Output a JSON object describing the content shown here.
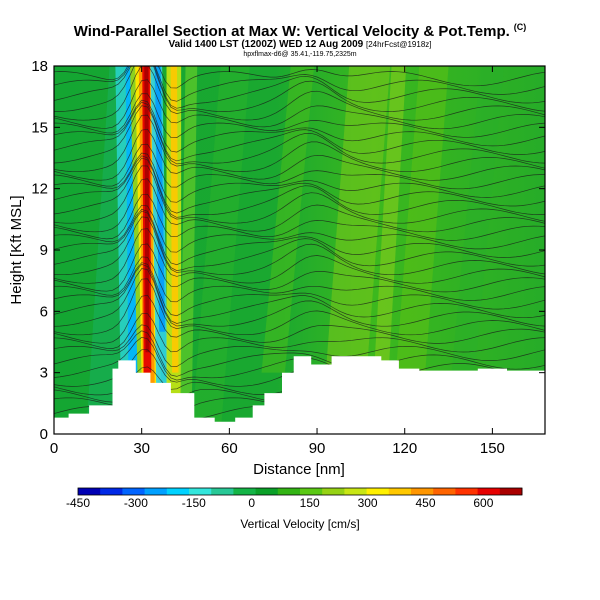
{
  "title": {
    "line1": "Wind-Parallel Section at Max W: Vertical Velocity & Pot.Temp.",
    "line1_units": "(C)",
    "line2_main": "Valid 1400 LST (1200Z) WED 12 Aug 2009",
    "line2_small": "[24hrFcst@1918z]",
    "line3": "hpxflmax-d6@ 35.41,-119.75,2325m"
  },
  "chart_data": {
    "type": "heatmap",
    "xlabel": "Distance [nm]",
    "ylabel": "Height [Kft MSL]",
    "xlim": [
      0,
      168
    ],
    "ylim": [
      0,
      18
    ],
    "xticks": [
      "0",
      "30",
      "60",
      "90",
      "120",
      "150"
    ],
    "yticks": [
      "0",
      "3",
      "6",
      "9",
      "12",
      "15",
      "18"
    ],
    "updraft_max_location_nm": 30,
    "terrain": {
      "x": [
        0,
        5,
        12,
        20,
        22,
        28,
        33,
        40,
        48,
        55,
        62,
        68,
        72,
        78,
        82,
        88,
        95,
        105,
        112,
        118,
        125,
        135,
        145,
        155,
        168
      ],
      "height_kft": [
        0.8,
        1.0,
        1.4,
        3.2,
        3.6,
        3.0,
        2.5,
        2.0,
        0.8,
        0.6,
        0.8,
        1.4,
        2.0,
        3.0,
        3.8,
        3.4,
        3.8,
        3.8,
        3.6,
        3.2,
        3.1,
        3.1,
        3.2,
        3.1,
        3.0
      ]
    },
    "colorbar": {
      "title": "Vertical Velocity [cm/s]",
      "tick_labels": [
        "-450",
        "-300",
        "-150",
        "0",
        "150",
        "300",
        "450",
        "600"
      ],
      "range": [
        -450,
        700
      ],
      "colors": [
        "#0000b4",
        "#0028e6",
        "#0064ff",
        "#00a0ff",
        "#00d2ff",
        "#32e6dc",
        "#28c896",
        "#14b446",
        "#0aa028",
        "#32b414",
        "#5ac814",
        "#96d214",
        "#c8e614",
        "#fff000",
        "#ffc800",
        "#ff9600",
        "#ff6400",
        "#ff3200",
        "#e60000",
        "#aa0000"
      ]
    }
  }
}
